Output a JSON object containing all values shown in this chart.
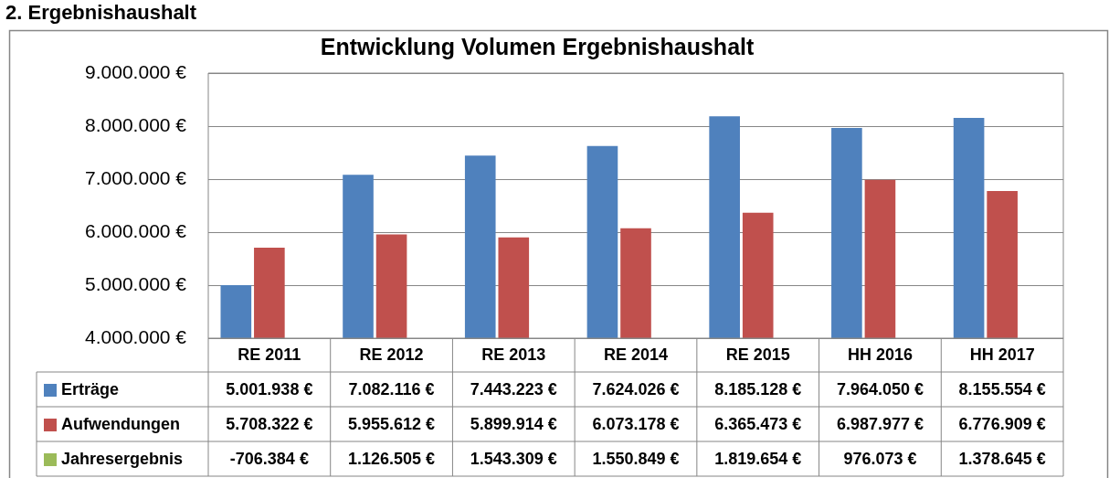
{
  "chart_data": {
    "type": "bar",
    "title": "Entwicklung Volumen Ergebnishaushalt",
    "annotations": [
      "2. Ergebnishaushalt"
    ],
    "categories": [
      "RE 2011",
      "RE 2012",
      "RE 2013",
      "RE 2014",
      "RE 2015",
      "HH 2016",
      "HH 2017"
    ],
    "series": [
      {
        "name": "Erträge",
        "color": "#4f81bd",
        "values": [
          5001938,
          7082116,
          7443223,
          7624026,
          8185128,
          7964050,
          8155554
        ],
        "value_labels": [
          "5.001.938 €",
          "7.082.116 €",
          "7.443.223 €",
          "7.624.026 €",
          "8.185.128 €",
          "7.964.050 €",
          "8.155.554 €"
        ]
      },
      {
        "name": "Aufwendungen",
        "color": "#c0504d",
        "values": [
          5708322,
          5955612,
          5899914,
          6073178,
          6365473,
          6987977,
          6776909
        ],
        "value_labels": [
          "5.708.322 €",
          "5.955.612 €",
          "5.899.914 €",
          "6.073.178 €",
          "6.365.473 €",
          "6.987.977 €",
          "6.776.909 €"
        ]
      },
      {
        "name": "Jahresergebnis",
        "color": "#9bbb59",
        "values": [
          null,
          null,
          null,
          null,
          null,
          null,
          null
        ],
        "value_labels": [
          "-706.384 €",
          "1.126.505 €",
          "1.543.309 €",
          "1.550.849 €",
          "1.819.654 €",
          "976.073 €",
          "1.378.645 €"
        ]
      }
    ],
    "ylim": [
      4000000,
      9000000
    ],
    "yticks": [
      {
        "value": 4000000,
        "label": "4.000.000 €"
      },
      {
        "value": 5000000,
        "label": "5.000.000 €"
      },
      {
        "value": 6000000,
        "label": "6.000.000 €"
      },
      {
        "value": 7000000,
        "label": "7.000.000 €"
      },
      {
        "value": 8000000,
        "label": "8.000.000 €"
      },
      {
        "value": 9000000,
        "label": "9.000.000 €"
      }
    ],
    "grid": "y",
    "legend": "bottom left"
  }
}
